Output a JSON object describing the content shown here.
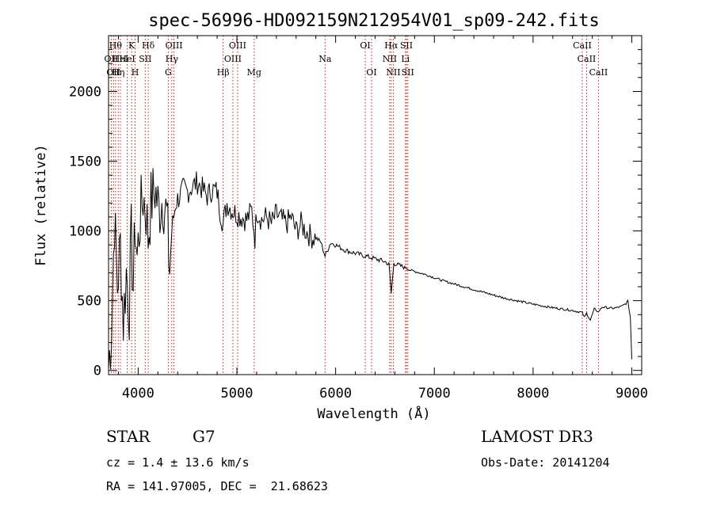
{
  "chart_data": {
    "type": "line",
    "title": "spec-56996-HD092159N212954V01_sp09-242.fits",
    "xlabel": "Wavelength (Å)",
    "ylabel": "Flux (relative)",
    "xlim": [
      3700,
      9100
    ],
    "ylim": [
      -30,
      2400
    ],
    "xticks": [
      {
        "value": 4000,
        "label": "4000"
      },
      {
        "value": 5000,
        "label": "5000"
      },
      {
        "value": 6000,
        "label": "6000"
      },
      {
        "value": 7000,
        "label": "7000"
      },
      {
        "value": 8000,
        "label": "8000"
      },
      {
        "value": 9000,
        "label": "9000"
      }
    ],
    "yticks": [
      {
        "value": 0,
        "label": "0"
      },
      {
        "value": 500,
        "label": "500"
      },
      {
        "value": 1000,
        "label": "1000"
      },
      {
        "value": 1500,
        "label": "1500"
      },
      {
        "value": 2000,
        "label": "2000"
      }
    ],
    "series": [
      {
        "name": "flux",
        "x": [
          3700,
          3730,
          3760,
          3790,
          3820,
          3850,
          3880,
          3910,
          3930,
          3950,
          3970,
          3990,
          4020,
          4050,
          4080,
          4101,
          4130,
          4170,
          4210,
          4250,
          4290,
          4320,
          4340,
          4380,
          4420,
          4460,
          4500,
          4550,
          4600,
          4650,
          4700,
          4750,
          4800,
          4830,
          4861,
          4900,
          4950,
          5000,
          5050,
          5100,
          5150,
          5183,
          5200,
          5250,
          5300,
          5350,
          5400,
          5450,
          5500,
          5550,
          5600,
          5650,
          5700,
          5750,
          5800,
          5850,
          5893,
          5950,
          6000,
          6050,
          6100,
          6150,
          6200,
          6250,
          6300,
          6350,
          6400,
          6450,
          6500,
          6540,
          6563,
          6590,
          6620,
          6650,
          6700,
          6750,
          6800,
          6900,
          7000,
          7100,
          7200,
          7300,
          7400,
          7500,
          7600,
          7700,
          7800,
          7900,
          8000,
          8100,
          8200,
          8300,
          8400,
          8498,
          8520,
          8542,
          8580,
          8620,
          8662,
          8700,
          8750,
          8800,
          8850,
          8900,
          8940,
          8960,
          8985,
          9000
        ],
        "y": [
          20,
          300,
          1100,
          600,
          900,
          350,
          700,
          450,
          950,
          600,
          1050,
          800,
          1100,
          1250,
          1150,
          950,
          1200,
          1300,
          1150,
          1250,
          1100,
          700,
          1000,
          1200,
          1250,
          1300,
          1280,
          1320,
          1350,
          1300,
          1250,
          1300,
          1280,
          1150,
          1050,
          1200,
          1150,
          1120,
          1100,
          1080,
          1150,
          950,
          1150,
          1080,
          1100,
          1050,
          1120,
          1080,
          1050,
          1100,
          1000,
          1050,
          1000,
          960,
          950,
          920,
          820,
          915,
          900,
          880,
          860,
          850,
          840,
          830,
          820,
          810,
          800,
          790,
          780,
          760,
          550,
          770,
          760,
          750,
          740,
          720,
          710,
          690,
          665,
          640,
          620,
          600,
          580,
          560,
          540,
          520,
          505,
          490,
          475,
          462,
          450,
          440,
          430,
          415,
          380,
          410,
          360,
          440,
          420,
          455,
          450,
          445,
          450,
          460,
          480,
          495,
          380,
          80
        ]
      }
    ],
    "lines": [
      {
        "wl": 3727,
        "label": "OII",
        "row": 2
      },
      {
        "wl": 3750,
        "label": "OII",
        "row": 3
      },
      {
        "wl": 3771,
        "label": "Hθ",
        "row": 1
      },
      {
        "wl": 3798,
        "label": "Hη",
        "row": 3
      },
      {
        "wl": 3820,
        "label": "HeI",
        "row": 2
      },
      {
        "wl": 3889,
        "label": "HeI",
        "row": 2
      },
      {
        "wl": 3934,
        "label": "K",
        "row": 1
      },
      {
        "wl": 3969,
        "label": "H",
        "row": 3
      },
      {
        "wl": 4072,
        "label": "SII",
        "row": 2
      },
      {
        "wl": 4102,
        "label": "Hδ",
        "row": 1
      },
      {
        "wl": 4305,
        "label": "G",
        "row": 3
      },
      {
        "wl": 4341,
        "label": "Hγ",
        "row": 2
      },
      {
        "wl": 4363,
        "label": "OIII",
        "row": 1
      },
      {
        "wl": 4861,
        "label": "Hβ",
        "row": 3
      },
      {
        "wl": 4959,
        "label": "OIII",
        "row": 2
      },
      {
        "wl": 5007,
        "label": "OIII",
        "row": 1
      },
      {
        "wl": 5175,
        "label": "Mg",
        "row": 3
      },
      {
        "wl": 5893,
        "label": "Na",
        "row": 2
      },
      {
        "wl": 6300,
        "label": "OI",
        "row": 1
      },
      {
        "wl": 6364,
        "label": "OI",
        "row": 3
      },
      {
        "wl": 6548,
        "label": "NII",
        "row": 2
      },
      {
        "wl": 6563,
        "label": "Hα",
        "row": 1
      },
      {
        "wl": 6584,
        "label": "NII",
        "row": 3
      },
      {
        "wl": 6707,
        "label": "Li",
        "row": 2
      },
      {
        "wl": 6717,
        "label": "SII",
        "row": 1
      },
      {
        "wl": 6731,
        "label": "SII",
        "row": 3
      },
      {
        "wl": 8498,
        "label": "CaII",
        "row": 1
      },
      {
        "wl": 8542,
        "label": "CaII",
        "row": 2
      },
      {
        "wl": 8662,
        "label": "CaII",
        "row": 3
      }
    ]
  },
  "info": {
    "class": "STAR",
    "subclass": "G7",
    "survey": "LAMOST DR3",
    "cz": "cz = 1.4 ± 13.6 km/s",
    "obs_date": "Obs-Date: 20141204",
    "coords": "RA = 141.97005, DEC =  21.68623"
  },
  "colors": {
    "line_marker": "#cc0000",
    "spectrum": "#000000"
  }
}
